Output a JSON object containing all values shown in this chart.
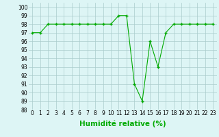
{
  "x": [
    0,
    1,
    2,
    3,
    4,
    5,
    6,
    7,
    8,
    9,
    10,
    11,
    12,
    13,
    14,
    15,
    16,
    17,
    18,
    19,
    20,
    21,
    22,
    23
  ],
  "y": [
    97,
    97,
    98,
    98,
    98,
    98,
    98,
    98,
    98,
    98,
    98,
    99,
    99,
    91,
    89,
    96,
    93,
    97,
    98,
    98,
    98,
    98,
    98,
    98
  ],
  "line_color": "#00aa00",
  "marker": "+",
  "marker_size": 3,
  "marker_color": "#00aa00",
  "bg_color": "#ddf5f5",
  "grid_color": "#aacccc",
  "xlabel": "Humidité relative (%)",
  "xlabel_color": "#00aa00",
  "xlim": [
    -0.5,
    23.5
  ],
  "ylim": [
    88,
    100.5
  ],
  "yticks": [
    88,
    89,
    90,
    91,
    92,
    93,
    94,
    95,
    96,
    97,
    98,
    99,
    100
  ],
  "xticks": [
    0,
    1,
    2,
    3,
    4,
    5,
    6,
    7,
    8,
    9,
    10,
    11,
    12,
    13,
    14,
    15,
    16,
    17,
    18,
    19,
    20,
    21,
    22,
    23
  ],
  "tick_label_fontsize": 5.5,
  "xlabel_fontsize": 7.5
}
